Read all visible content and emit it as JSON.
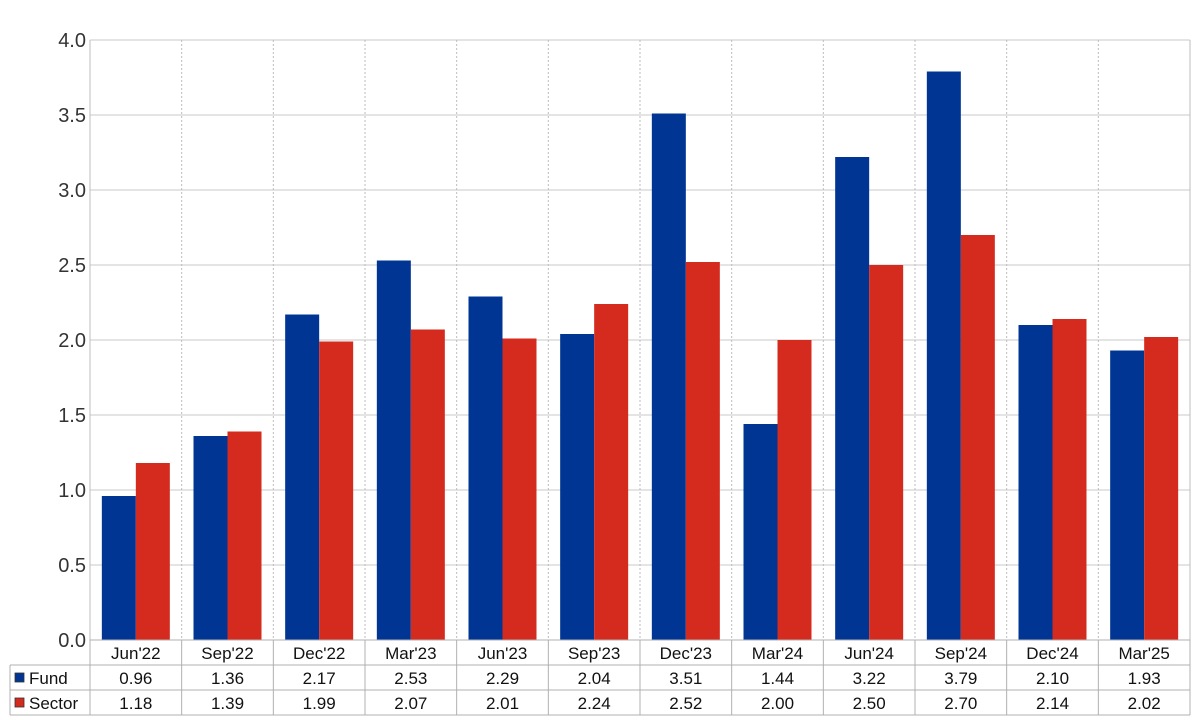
{
  "chart_data": {
    "type": "bar",
    "title": "",
    "xlabel": "",
    "ylabel": "",
    "ylim": [
      0,
      4.0
    ],
    "yticks": [
      "0.0",
      "0.5",
      "1.0",
      "1.5",
      "2.0",
      "2.5",
      "3.0",
      "3.5",
      "4.0"
    ],
    "grid": true,
    "legend_placement": "data-table-left",
    "categories": [
      "Jun'22",
      "Sep'22",
      "Dec'22",
      "Mar'23",
      "Jun'23",
      "Sep'23",
      "Dec'23",
      "Mar'24",
      "Jun'24",
      "Sep'24",
      "Dec'24",
      "Mar'25"
    ],
    "series": [
      {
        "name": "Fund",
        "color": "#003594",
        "values": [
          0.96,
          1.36,
          2.17,
          2.53,
          2.29,
          2.04,
          3.51,
          1.44,
          3.22,
          3.79,
          2.1,
          1.93
        ],
        "labels": [
          "0.96",
          "1.36",
          "2.17",
          "2.53",
          "2.29",
          "2.04",
          "3.51",
          "1.44",
          "3.22",
          "3.79",
          "2.10",
          "1.93"
        ]
      },
      {
        "name": "Sector",
        "color": "#d52b1e",
        "values": [
          1.18,
          1.39,
          1.99,
          2.07,
          2.01,
          2.24,
          2.52,
          2.0,
          2.5,
          2.7,
          2.14,
          2.02
        ],
        "labels": [
          "1.18",
          "1.39",
          "1.99",
          "2.07",
          "2.01",
          "2.24",
          "2.52",
          "2.00",
          "2.50",
          "2.70",
          "2.14",
          "2.02"
        ]
      }
    ]
  }
}
